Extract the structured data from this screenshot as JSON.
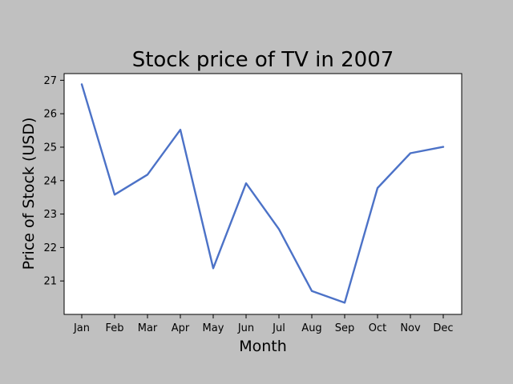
{
  "chart_data": {
    "type": "line",
    "title": "Stock price of TV in 2007",
    "xlabel": "Month",
    "ylabel": "Price of Stock (USD)",
    "categories": [
      "Jan",
      "Feb",
      "Mar",
      "Apr",
      "May",
      "Jun",
      "Jul",
      "Aug",
      "Sep",
      "Oct",
      "Nov",
      "Dec"
    ],
    "series": [
      {
        "values": [
          26.88,
          23.58,
          24.18,
          25.52,
          21.38,
          23.92,
          22.55,
          20.7,
          20.35,
          23.78,
          24.82,
          25.01
        ]
      }
    ],
    "ylim": [
      20.0,
      27.2
    ],
    "yticks": [
      21,
      22,
      23,
      24,
      25,
      26,
      27
    ],
    "grid": false,
    "legend": "none",
    "line_color": "#4c72c7",
    "background_color": "#c0c0c0",
    "plot_background_color": "#ffffff"
  }
}
